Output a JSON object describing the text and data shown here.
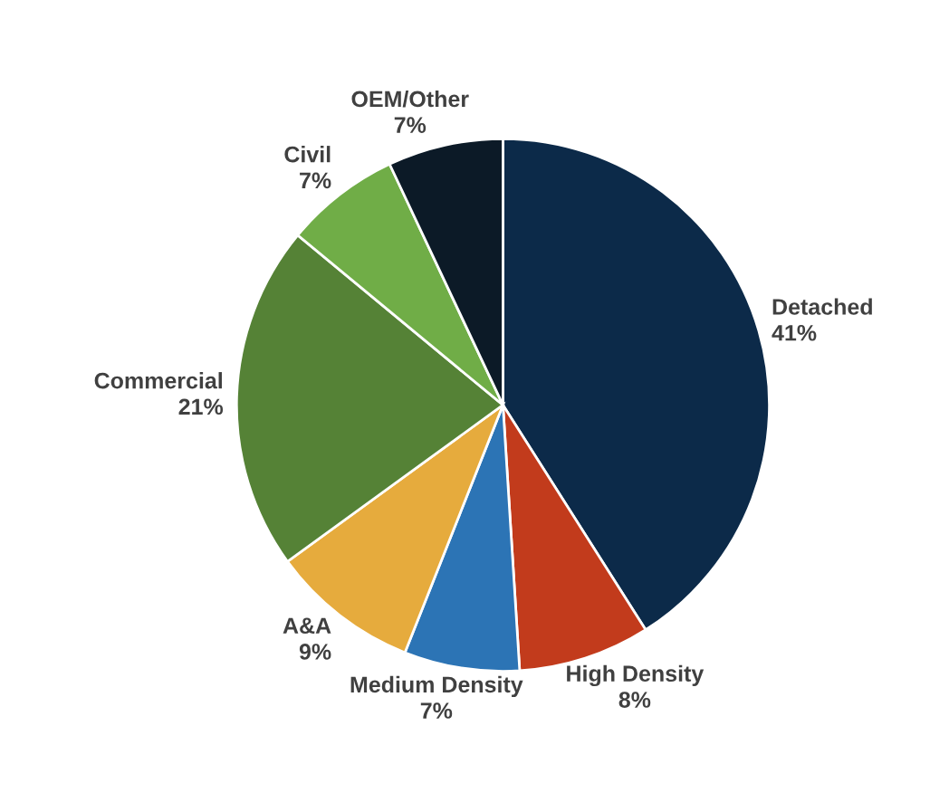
{
  "chart_data": {
    "type": "pie",
    "categories": [
      "Detached",
      "High Density",
      "Medium Density",
      "A&A",
      "Commercial",
      "Civil",
      "OEM/Other"
    ],
    "values": [
      41,
      8,
      7,
      9,
      21,
      7,
      7
    ],
    "value_labels": [
      "41%",
      "8%",
      "7%",
      "9%",
      "21%",
      "7%",
      "7%"
    ],
    "colors": [
      "#0c2a49",
      "#c23b1c",
      "#2c74b5",
      "#e6ab3d",
      "#558236",
      "#70ad47",
      "#0c1a27"
    ],
    "legend": false
  }
}
